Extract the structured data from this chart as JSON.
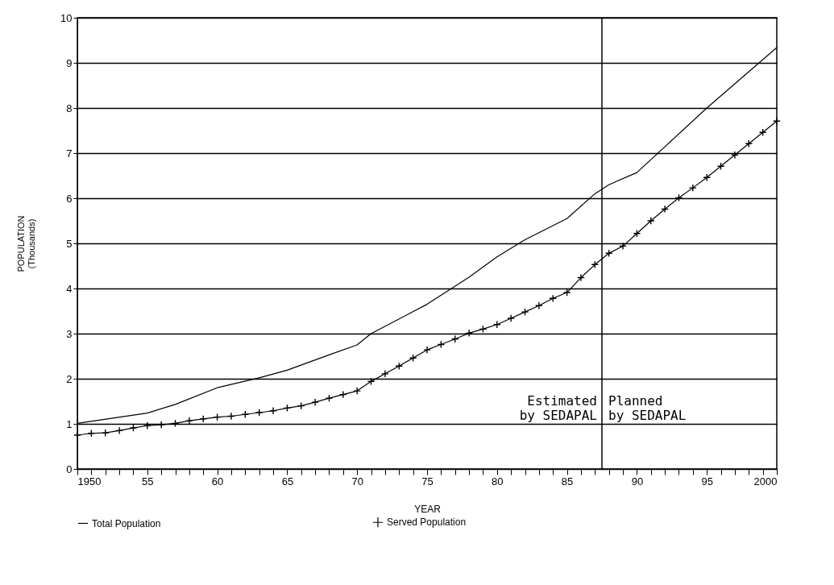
{
  "chart_data": {
    "type": "line",
    "xlabel": "YEAR",
    "ylabel": "POPULATION\n(Thousands)",
    "xlim": [
      1950,
      2000
    ],
    "ylim": [
      0,
      10
    ],
    "xticks": [
      1950,
      {
        "value": 1951,
        "label": null
      },
      {
        "value": 1952,
        "label": null
      },
      {
        "value": 1953,
        "label": null
      },
      {
        "value": 1954,
        "label": null
      },
      {
        "value": 1955,
        "label": "55"
      },
      {
        "value": 1956,
        "label": null
      },
      {
        "value": 1957,
        "label": null
      },
      {
        "value": 1958,
        "label": null
      },
      {
        "value": 1959,
        "label": null
      },
      {
        "value": 1960,
        "label": "60"
      },
      {
        "value": 1961,
        "label": null
      },
      {
        "value": 1962,
        "label": null
      },
      {
        "value": 1963,
        "label": null
      },
      {
        "value": 1964,
        "label": null
      },
      {
        "value": 1965,
        "label": "65"
      },
      {
        "value": 1966,
        "label": null
      },
      {
        "value": 1967,
        "label": null
      },
      {
        "value": 1968,
        "label": null
      },
      {
        "value": 1969,
        "label": null
      },
      {
        "value": 1970,
        "label": "70"
      },
      {
        "value": 1971,
        "label": null
      },
      {
        "value": 1972,
        "label": null
      },
      {
        "value": 1973,
        "label": null
      },
      {
        "value": 1974,
        "label": null
      },
      {
        "value": 1975,
        "label": "75"
      },
      {
        "value": 1976,
        "label": null
      },
      {
        "value": 1977,
        "label": null
      },
      {
        "value": 1978,
        "label": null
      },
      {
        "value": 1979,
        "label": null
      },
      {
        "value": 1980,
        "label": "80"
      },
      {
        "value": 1981,
        "label": null
      },
      {
        "value": 1982,
        "label": null
      },
      {
        "value": 1983,
        "label": null
      },
      {
        "value": 1984,
        "label": null
      },
      {
        "value": 1985,
        "label": "85"
      },
      {
        "value": 1986,
        "label": null
      },
      {
        "value": 1987,
        "label": null
      },
      {
        "value": 1988,
        "label": null
      },
      {
        "value": 1989,
        "label": null
      },
      {
        "value": 1990,
        "label": "90"
      },
      {
        "value": 1991,
        "label": null
      },
      {
        "value": 1992,
        "label": null
      },
      {
        "value": 1993,
        "label": null
      },
      {
        "value": 1994,
        "label": null
      },
      {
        "value": 1995,
        "label": "95"
      },
      {
        "value": 1996,
        "label": null
      },
      {
        "value": 1997,
        "label": null
      },
      {
        "value": 1998,
        "label": null
      },
      {
        "value": 1999,
        "label": null
      },
      2000
    ],
    "yticks": [
      0,
      1,
      2,
      3,
      4,
      5,
      6,
      7,
      8,
      9,
      10
    ],
    "grid": "y",
    "legend": "bottom",
    "series": [
      {
        "name": "Total Population",
        "color": "#000000",
        "marker": "none",
        "x": [
          1950,
          1955,
          1957,
          1960,
          1963,
          1965,
          1968,
          1970,
          1971,
          1975,
          1978,
          1980,
          1982,
          1985,
          1987,
          1988,
          1990,
          1995,
          2000
        ],
        "values": [
          1.01,
          1.24,
          1.43,
          1.8,
          2.02,
          2.19,
          2.53,
          2.75,
          3.0,
          3.65,
          4.25,
          4.7,
          5.08,
          5.55,
          6.1,
          6.3,
          6.57,
          8.0,
          9.34
        ]
      },
      {
        "name": "Served Population",
        "color": "#000000",
        "marker": "cross",
        "x": [
          1950,
          1951,
          1952,
          1953,
          1954,
          1955,
          1956,
          1957,
          1958,
          1959,
          1960,
          1961,
          1962,
          1963,
          1964,
          1965,
          1966,
          1967,
          1968,
          1969,
          1970,
          1971,
          1972,
          1973,
          1974,
          1975,
          1976,
          1977,
          1978,
          1979,
          1980,
          1981,
          1982,
          1983,
          1984,
          1985,
          1986,
          1987,
          1988,
          1989,
          1990,
          1991,
          1992,
          1993,
          1994,
          1995,
          1996,
          1997,
          1998,
          1999,
          2000
        ],
        "values": [
          0.75,
          0.79,
          0.8,
          0.85,
          0.91,
          0.96,
          0.98,
          1.01,
          1.07,
          1.11,
          1.15,
          1.17,
          1.21,
          1.25,
          1.29,
          1.35,
          1.4,
          1.48,
          1.57,
          1.65,
          1.73,
          1.94,
          2.11,
          2.28,
          2.46,
          2.64,
          2.76,
          2.88,
          3.01,
          3.1,
          3.2,
          3.34,
          3.48,
          3.62,
          3.78,
          3.91,
          4.24,
          4.53,
          4.78,
          4.94,
          5.22,
          5.5,
          5.76,
          6.01,
          6.23,
          6.46,
          6.71,
          6.96,
          7.21,
          7.46,
          7.71
        ]
      }
    ],
    "ref_lines": [
      {
        "axis": "x",
        "value": 1987.5,
        "color": "#000000"
      }
    ],
    "annotations": [
      "Estimated\nby SEDAPAL",
      "Planned\nby SEDAPAL"
    ]
  }
}
